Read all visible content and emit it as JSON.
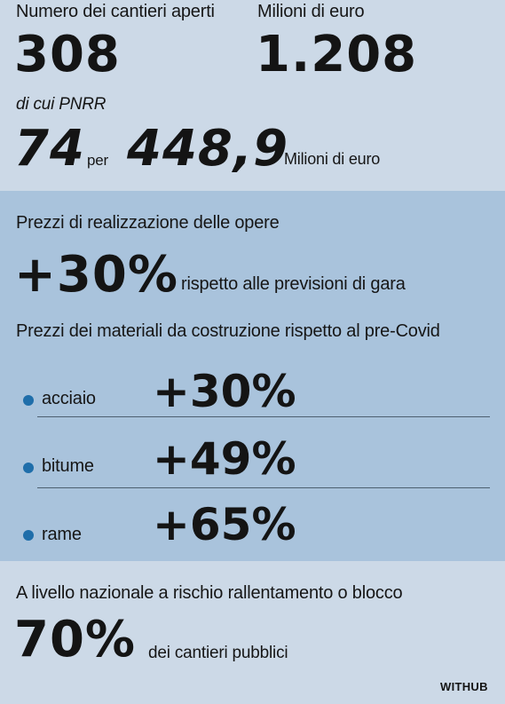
{
  "top": {
    "cantieri_label": "Numero dei cantieri aperti",
    "cantieri_value": "308",
    "milioni_label": "Milioni di euro",
    "milioni_value": "1.208",
    "pnrr_label": "di cui PNRR",
    "pnrr_count": "74",
    "per_word": "per",
    "pnrr_amount": "448,9",
    "pnrr_unit": "Milioni di euro"
  },
  "prices": {
    "realizzazione_label": "Prezzi di realizzazione delle opere",
    "realizzazione_value": "+30%",
    "realizzazione_note": "rispetto alle previsioni di gara",
    "materiali_label": "Prezzi dei materiali da costruzione rispetto al pre-Covid",
    "materials": [
      {
        "name": "acciaio",
        "value": "+30%"
      },
      {
        "name": "bitume",
        "value": "+49%"
      },
      {
        "name": "rame",
        "value": "+65%"
      }
    ]
  },
  "bottom": {
    "rischio_label": "A livello nazionale a rischio rallentamento o blocco",
    "rischio_value": "70%",
    "rischio_note": "dei cantieri pubblici",
    "brand": "WITHUB"
  },
  "colors": {
    "background": "#ccd9e7",
    "band": "#a9c3dc",
    "bullet": "#1f6eaa"
  }
}
